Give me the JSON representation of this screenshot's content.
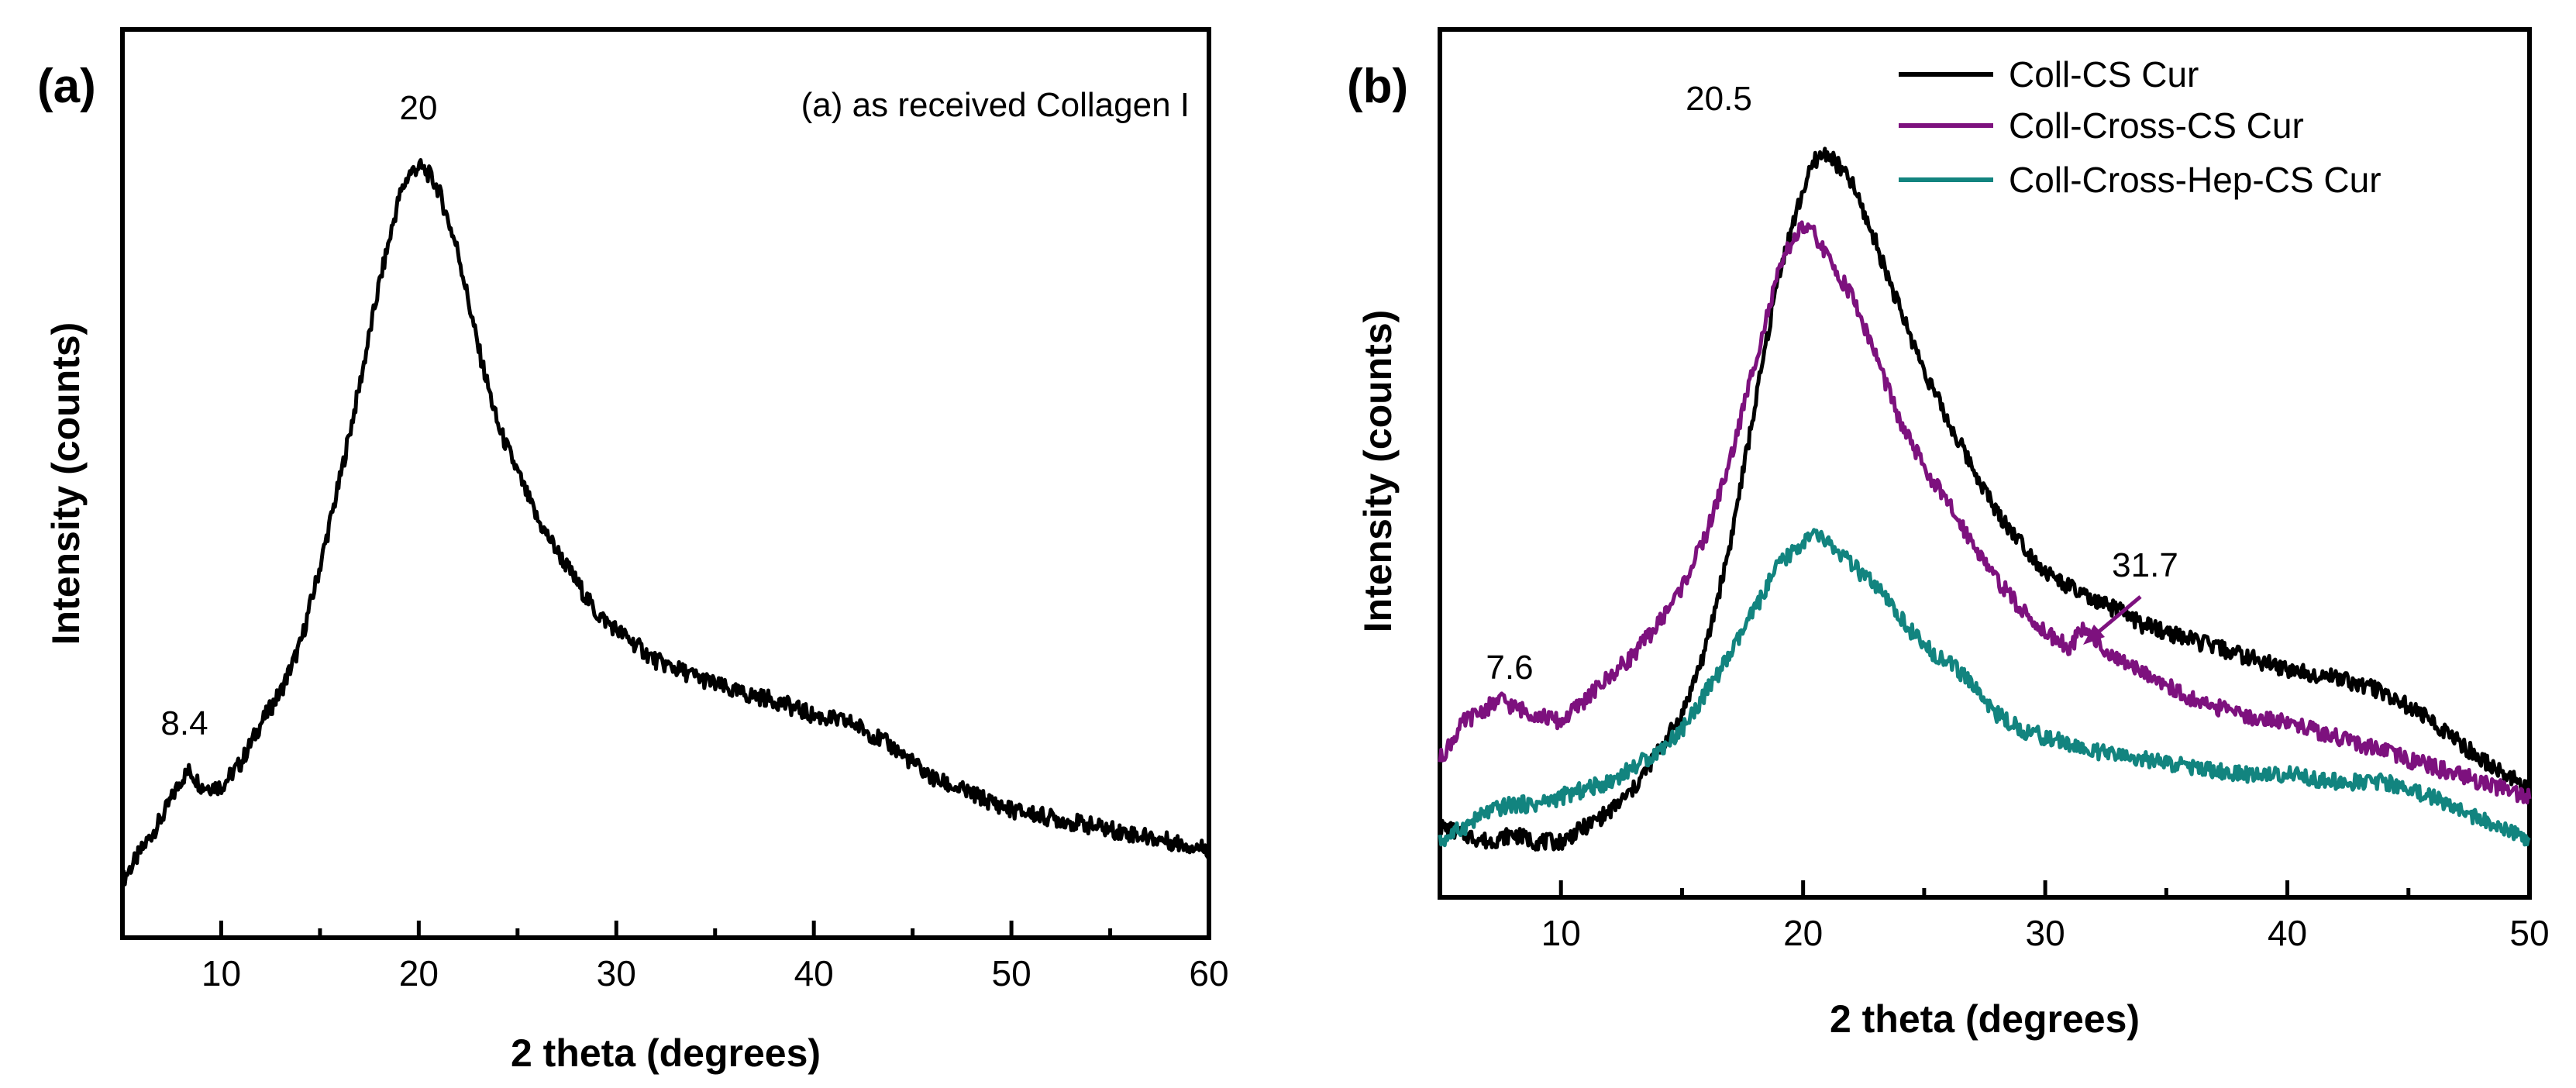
{
  "chart_data": [
    {
      "type": "line",
      "panel_label": "(a)",
      "title": "",
      "xlabel": "2 theta (degrees)",
      "ylabel": "Intensity (counts)",
      "xlim": [
        5,
        60
      ],
      "ylim": [
        0,
        100
      ],
      "xticks": [
        "10",
        "20",
        "30",
        "40",
        "50",
        "60"
      ],
      "xtick_values": [
        10,
        20,
        30,
        40,
        50,
        60
      ],
      "yticks_shown": false,
      "legend": [
        "(a) as received Collagen I"
      ],
      "legend_position": "top-right",
      "annotations": [
        {
          "text": "8.4",
          "x": 8.4
        },
        {
          "text": "20",
          "x": 20
        }
      ],
      "series": [
        {
          "name": "(a) as received Collagen I",
          "color": "#000000",
          "x": [
            5,
            6,
            7,
            8,
            8.4,
            9,
            10,
            11,
            12,
            13,
            14,
            15,
            16,
            17,
            18,
            19,
            19.5,
            20,
            20.5,
            21,
            22,
            23,
            24,
            25,
            26,
            27,
            28,
            29,
            30,
            32,
            34,
            36,
            38,
            40,
            42,
            44,
            46,
            48,
            50,
            52,
            54,
            56,
            58,
            60
          ],
          "y": [
            2,
            6,
            10,
            15,
            16,
            14,
            14,
            17,
            22,
            26,
            32,
            42,
            53,
            65,
            78,
            89,
            92,
            93,
            92,
            90,
            82,
            70,
            60,
            54,
            48,
            44,
            40,
            36,
            34,
            30,
            28,
            26,
            25,
            23,
            22,
            19,
            15,
            13,
            11,
            10,
            9,
            8,
            7,
            6
          ]
        }
      ]
    },
    {
      "type": "line",
      "panel_label": "(b)",
      "title": "",
      "xlabel": "2 theta (degrees)",
      "ylabel": "Intensity (counts)",
      "xlim": [
        5,
        50
      ],
      "ylim": [
        0,
        100
      ],
      "xticks": [
        "10",
        "20",
        "30",
        "40",
        "50"
      ],
      "xtick_values": [
        10,
        20,
        30,
        40,
        50
      ],
      "yticks_shown": false,
      "legend_position": "top-right",
      "annotations": [
        {
          "text": "20.5",
          "x": 20.5
        },
        {
          "text": "7.6",
          "x": 7.6
        },
        {
          "text": "31.7",
          "x": 31.7
        }
      ],
      "series": [
        {
          "name": "Coll-CS Cur",
          "color": "#000000",
          "x": [
            5,
            6,
            7,
            8,
            9,
            10,
            11,
            12,
            13,
            14,
            15,
            16,
            17,
            18,
            19,
            20,
            20.5,
            21,
            21.5,
            22,
            23,
            24,
            25,
            26,
            27,
            28,
            29,
            30,
            31,
            32,
            33,
            34,
            36,
            38,
            40,
            42,
            44,
            46,
            48,
            50
          ],
          "y": [
            4,
            3,
            2,
            3,
            2,
            2,
            4,
            6,
            9,
            14,
            19,
            28,
            42,
            60,
            78,
            89,
            93,
            94,
            92,
            90,
            82,
            73,
            65,
            58,
            52,
            46,
            42,
            38,
            36,
            34,
            33,
            31,
            29,
            27,
            25,
            24,
            22,
            18,
            13,
            9
          ]
        },
        {
          "name": "Coll-Cross-CS Cur",
          "color": "#7d117e",
          "x": [
            5,
            6,
            7,
            7.6,
            8,
            9,
            10,
            11,
            12,
            13,
            14,
            15,
            16,
            17,
            18,
            19,
            19.5,
            20,
            20.5,
            21,
            22,
            23,
            24,
            25,
            26,
            27,
            28,
            29,
            30,
            31,
            31.7,
            32,
            33,
            34,
            35,
            36,
            38,
            40,
            42,
            44,
            46,
            48,
            50
          ],
          "y": [
            13,
            18,
            20,
            21,
            20,
            19,
            18,
            21,
            24,
            27,
            31,
            36,
            43,
            53,
            66,
            78,
            82,
            84,
            83,
            80,
            75,
            67,
            58,
            52,
            47,
            42,
            37,
            33,
            30,
            28,
            31,
            29,
            26,
            25,
            23,
            21,
            19,
            18,
            16,
            14,
            12,
            10,
            8
          ]
        },
        {
          "name": "Coll-Cross-Hep-CS Cur",
          "color": "#12847f",
          "x": [
            5,
            6,
            7,
            8,
            9,
            10,
            11,
            12,
            13,
            14,
            15,
            16,
            17,
            18,
            19,
            20,
            20.5,
            21,
            22,
            23,
            24,
            25,
            26,
            27,
            28,
            29,
            30,
            32,
            34,
            36,
            38,
            40,
            42,
            44,
            46,
            48,
            50
          ],
          "y": [
            2,
            4,
            6,
            7,
            7,
            8,
            9,
            10,
            12,
            14,
            17,
            22,
            27,
            33,
            39,
            42,
            43,
            42,
            39,
            36,
            32,
            28,
            26,
            23,
            19,
            17,
            16,
            14,
            13,
            12,
            11,
            11,
            10,
            10,
            8,
            5,
            2
          ]
        }
      ]
    }
  ]
}
